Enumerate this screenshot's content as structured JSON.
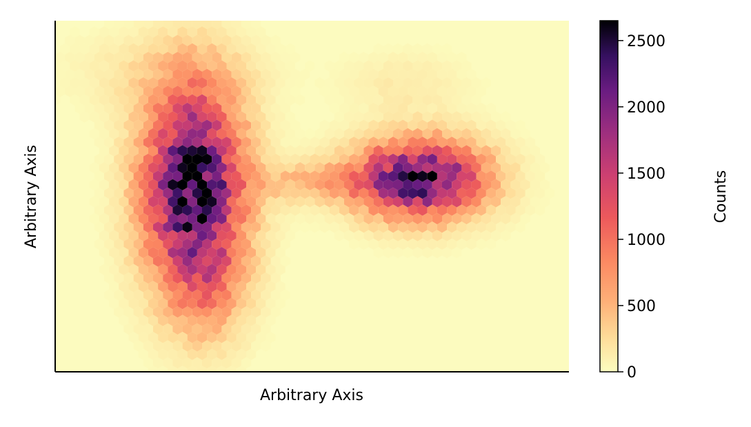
{
  "chart_data": {
    "type": "heatmap",
    "subtype": "hexbin",
    "xlabel": "Arbitrary Axis",
    "ylabel": "Arbitrary Axis",
    "x_ticks_shown": false,
    "y_ticks_shown": false,
    "xlim": [
      0,
      1
    ],
    "ylim": [
      0,
      1
    ],
    "grid": false,
    "colormap": "magma_r",
    "colorbar": {
      "label": "Counts",
      "ticks": [
        0,
        500,
        1000,
        1500,
        2000,
        2500
      ],
      "tick_labels": [
        "0",
        "500",
        "1000",
        "1500",
        "2000",
        "2500"
      ],
      "vmin": 0,
      "vmax": 2650
    },
    "clusters": [
      {
        "cx": 0.27,
        "cy": 0.52,
        "sx": 0.065,
        "sy": 0.19,
        "peak": 2550
      },
      {
        "cx": 0.71,
        "cy": 0.55,
        "sx": 0.085,
        "sy": 0.075,
        "peak": 2350
      },
      {
        "cx": 0.5,
        "cy": 0.54,
        "sx": 0.08,
        "sy": 0.04,
        "peak": 450
      },
      {
        "cx": 0.3,
        "cy": 0.22,
        "sx": 0.05,
        "sy": 0.1,
        "peak": 420
      },
      {
        "cx": 0.22,
        "cy": 0.85,
        "sx": 0.12,
        "sy": 0.08,
        "peak": 200
      },
      {
        "cx": 0.68,
        "cy": 0.82,
        "sx": 0.08,
        "sy": 0.06,
        "peak": 150
      }
    ],
    "colors": {
      "background": "#fcfbbf",
      "axis": "#000000"
    }
  }
}
